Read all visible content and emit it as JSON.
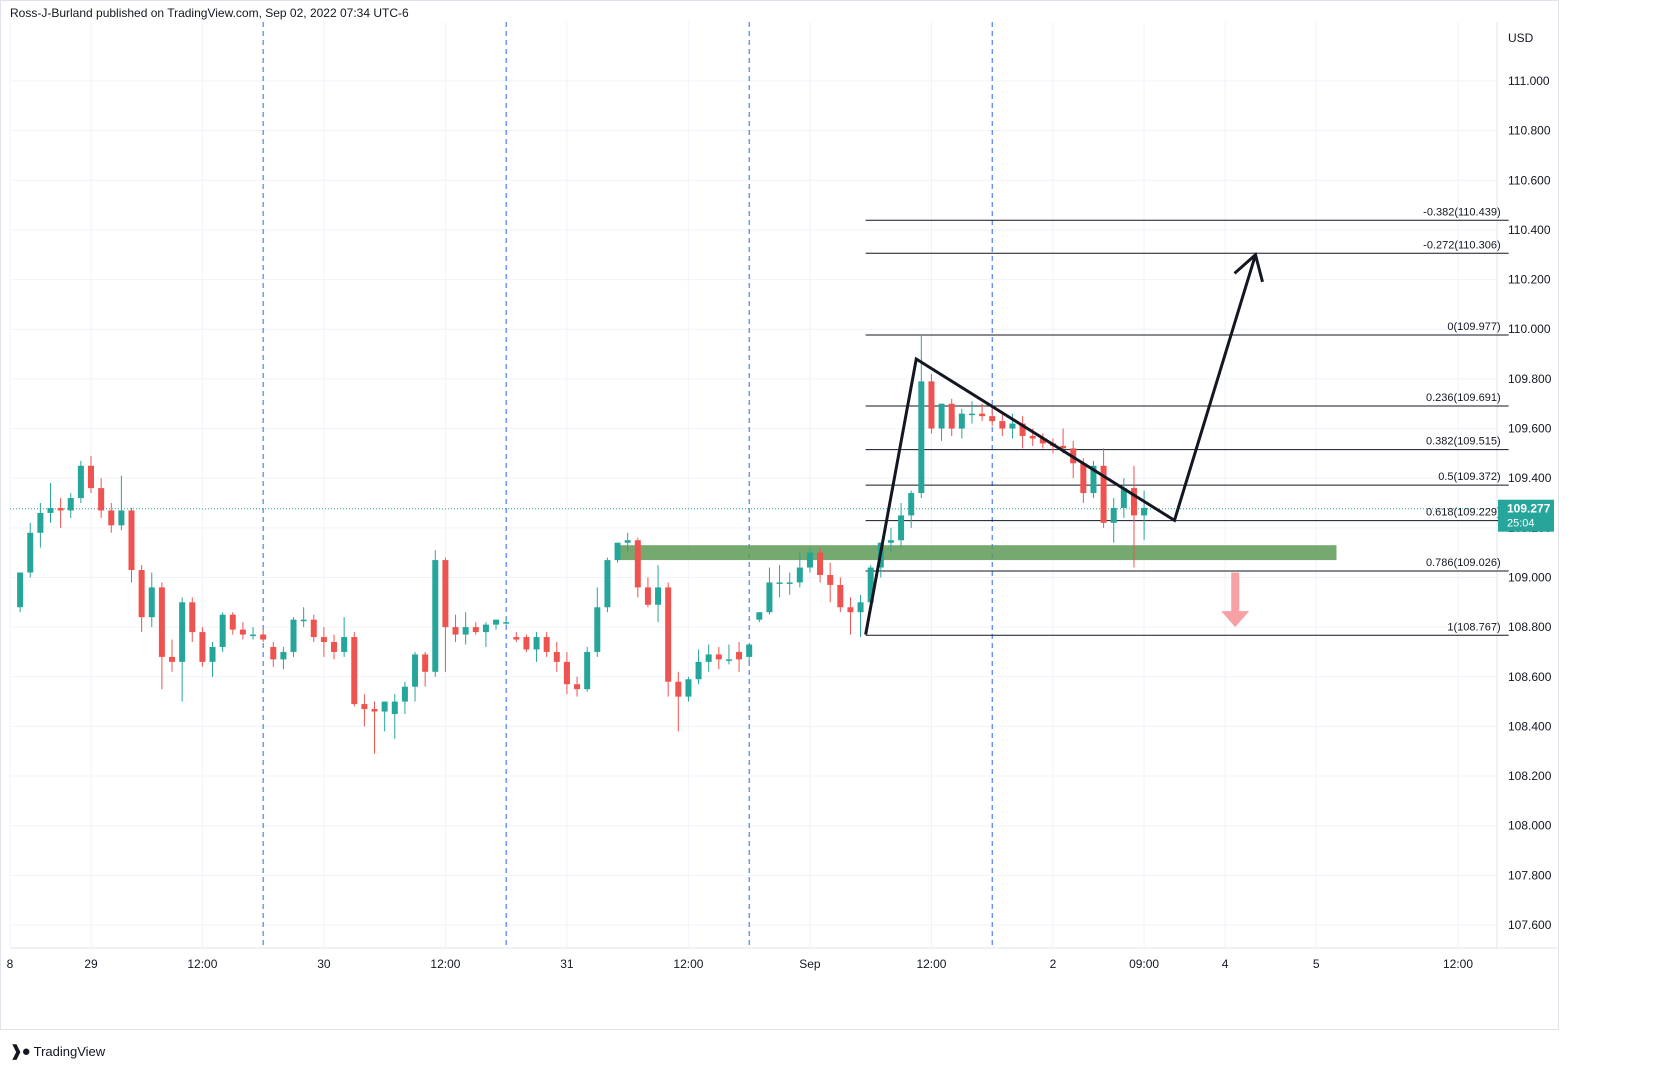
{
  "header": {
    "published_line": "Ross-J-Burland published on TradingView.com, Sep 02, 2022 07:34 UTC-6"
  },
  "footer": {
    "brand_label": "TradingView",
    "logo_icon": "tradingview-logo-icon"
  },
  "colors": {
    "up_candle": "#26a69a",
    "down_candle": "#ef5350",
    "session_line": "#2962ff",
    "zone_fill": "#5e9a56",
    "arrow_down": "#f7a1a5",
    "price_tag": "#26a69a",
    "fib_line": "#131722"
  },
  "chart_data": {
    "type": "candlestick",
    "title": "",
    "currency": "USD",
    "ylim": [
      107.5,
      111.2
    ],
    "y_ticks": [
      107.6,
      107.8,
      108.0,
      108.2,
      108.4,
      108.6,
      108.8,
      109.0,
      109.2,
      109.4,
      109.6,
      109.8,
      110.0,
      110.2,
      110.4,
      110.6,
      110.8,
      111.0
    ],
    "y_tick_labels": [
      "107.600",
      "107.800",
      "108.000",
      "108.200",
      "108.400",
      "108.600",
      "108.800",
      "109.000",
      "109.200",
      "109.400",
      "109.600",
      "109.800",
      "110.000",
      "110.200",
      "110.400",
      "110.600",
      "110.800",
      "111.000"
    ],
    "x_labels": [
      {
        "label": "8",
        "t": 0
      },
      {
        "label": "29",
        "t": 8
      },
      {
        "label": "12:00",
        "t": 19
      },
      {
        "label": "30",
        "t": 31
      },
      {
        "label": "12:00",
        "t": 43
      },
      {
        "label": "31",
        "t": 55
      },
      {
        "label": "12:00",
        "t": 67
      },
      {
        "label": "Sep",
        "t": 79
      },
      {
        "label": "12:00",
        "t": 91
      },
      {
        "label": "2",
        "t": 103
      },
      {
        "label": "09:00",
        "t": 112
      },
      {
        "label": "4",
        "t": 120
      },
      {
        "label": "5",
        "t": 129
      },
      {
        "label": "12:00",
        "t": 143
      }
    ],
    "t_range": [
      0,
      149
    ],
    "session_lines_t": [
      25,
      49,
      73,
      97
    ],
    "candles": [
      {
        "t": 1,
        "o": 108.88,
        "h": 109.02,
        "l": 108.86,
        "c": 109.02
      },
      {
        "t": 2,
        "o": 109.02,
        "h": 109.22,
        "l": 109.0,
        "c": 109.18
      },
      {
        "t": 3,
        "o": 109.18,
        "h": 109.3,
        "l": 109.12,
        "c": 109.26
      },
      {
        "t": 4,
        "o": 109.26,
        "h": 109.38,
        "l": 109.22,
        "c": 109.28
      },
      {
        "t": 5,
        "o": 109.28,
        "h": 109.32,
        "l": 109.2,
        "c": 109.27
      },
      {
        "t": 6,
        "o": 109.27,
        "h": 109.34,
        "l": 109.24,
        "c": 109.32
      },
      {
        "t": 7,
        "o": 109.32,
        "h": 109.47,
        "l": 109.3,
        "c": 109.45
      },
      {
        "t": 8,
        "o": 109.45,
        "h": 109.49,
        "l": 109.34,
        "c": 109.36
      },
      {
        "t": 9,
        "o": 109.36,
        "h": 109.4,
        "l": 109.24,
        "c": 109.27
      },
      {
        "t": 10,
        "o": 109.27,
        "h": 109.3,
        "l": 109.18,
        "c": 109.21
      },
      {
        "t": 11,
        "o": 109.21,
        "h": 109.41,
        "l": 109.19,
        "c": 109.27
      },
      {
        "t": 12,
        "o": 109.27,
        "h": 109.28,
        "l": 108.98,
        "c": 109.03
      },
      {
        "t": 13,
        "o": 109.03,
        "h": 109.05,
        "l": 108.78,
        "c": 108.84
      },
      {
        "t": 14,
        "o": 108.84,
        "h": 109.02,
        "l": 108.8,
        "c": 108.96
      },
      {
        "t": 15,
        "o": 108.96,
        "h": 108.98,
        "l": 108.55,
        "c": 108.68
      },
      {
        "t": 16,
        "o": 108.68,
        "h": 108.75,
        "l": 108.62,
        "c": 108.66
      },
      {
        "t": 17,
        "o": 108.66,
        "h": 108.92,
        "l": 108.5,
        "c": 108.9
      },
      {
        "t": 18,
        "o": 108.9,
        "h": 108.92,
        "l": 108.74,
        "c": 108.78
      },
      {
        "t": 19,
        "o": 108.78,
        "h": 108.8,
        "l": 108.64,
        "c": 108.66
      },
      {
        "t": 20,
        "o": 108.66,
        "h": 108.74,
        "l": 108.6,
        "c": 108.72
      },
      {
        "t": 21,
        "o": 108.72,
        "h": 108.86,
        "l": 108.7,
        "c": 108.85
      },
      {
        "t": 22,
        "o": 108.85,
        "h": 108.86,
        "l": 108.77,
        "c": 108.79
      },
      {
        "t": 23,
        "o": 108.79,
        "h": 108.82,
        "l": 108.75,
        "c": 108.77
      },
      {
        "t": 24,
        "o": 108.77,
        "h": 108.8,
        "l": 108.75,
        "c": 108.77
      },
      {
        "t": 25,
        "o": 108.77,
        "h": 108.79,
        "l": 108.74,
        "c": 108.75
      },
      {
        "t": 26,
        "o": 108.72,
        "h": 108.74,
        "l": 108.64,
        "c": 108.67
      },
      {
        "t": 27,
        "o": 108.67,
        "h": 108.72,
        "l": 108.63,
        "c": 108.7
      },
      {
        "t": 28,
        "o": 108.7,
        "h": 108.84,
        "l": 108.68,
        "c": 108.83
      },
      {
        "t": 29,
        "o": 108.83,
        "h": 108.88,
        "l": 108.8,
        "c": 108.83
      },
      {
        "t": 30,
        "o": 108.83,
        "h": 108.85,
        "l": 108.74,
        "c": 108.76
      },
      {
        "t": 31,
        "o": 108.76,
        "h": 108.8,
        "l": 108.68,
        "c": 108.74
      },
      {
        "t": 32,
        "o": 108.74,
        "h": 108.77,
        "l": 108.67,
        "c": 108.7
      },
      {
        "t": 33,
        "o": 108.7,
        "h": 108.84,
        "l": 108.68,
        "c": 108.76
      },
      {
        "t": 34,
        "o": 108.76,
        "h": 108.78,
        "l": 108.48,
        "c": 108.49
      },
      {
        "t": 35,
        "o": 108.49,
        "h": 108.53,
        "l": 108.4,
        "c": 108.47
      },
      {
        "t": 36,
        "o": 108.47,
        "h": 108.5,
        "l": 108.29,
        "c": 108.46
      },
      {
        "t": 37,
        "o": 108.46,
        "h": 108.5,
        "l": 108.38,
        "c": 108.5
      },
      {
        "t": 38,
        "o": 108.45,
        "h": 108.53,
        "l": 108.35,
        "c": 108.5
      },
      {
        "t": 39,
        "o": 108.5,
        "h": 108.58,
        "l": 108.45,
        "c": 108.56
      },
      {
        "t": 40,
        "o": 108.56,
        "h": 108.7,
        "l": 108.5,
        "c": 108.69
      },
      {
        "t": 41,
        "o": 108.69,
        "h": 108.7,
        "l": 108.56,
        "c": 108.62
      },
      {
        "t": 42,
        "o": 108.62,
        "h": 109.11,
        "l": 108.6,
        "c": 109.07
      },
      {
        "t": 43,
        "o": 109.07,
        "h": 109.08,
        "l": 108.62,
        "c": 108.8
      },
      {
        "t": 44,
        "o": 108.8,
        "h": 108.85,
        "l": 108.74,
        "c": 108.77
      },
      {
        "t": 45,
        "o": 108.77,
        "h": 108.86,
        "l": 108.73,
        "c": 108.8
      },
      {
        "t": 46,
        "o": 108.8,
        "h": 108.82,
        "l": 108.77,
        "c": 108.78
      },
      {
        "t": 47,
        "o": 108.78,
        "h": 108.82,
        "l": 108.72,
        "c": 108.81
      },
      {
        "t": 48,
        "o": 108.81,
        "h": 108.83,
        "l": 108.79,
        "c": 108.83
      },
      {
        "t": 49,
        "o": 108.82,
        "h": 108.83,
        "l": 108.81,
        "c": 108.82
      },
      {
        "t": 50,
        "o": 108.76,
        "h": 108.78,
        "l": 108.74,
        "c": 108.75
      },
      {
        "t": 51,
        "o": 108.76,
        "h": 108.77,
        "l": 108.7,
        "c": 108.71
      },
      {
        "t": 52,
        "o": 108.71,
        "h": 108.78,
        "l": 108.66,
        "c": 108.76
      },
      {
        "t": 53,
        "o": 108.76,
        "h": 108.78,
        "l": 108.68,
        "c": 108.7
      },
      {
        "t": 54,
        "o": 108.7,
        "h": 108.74,
        "l": 108.62,
        "c": 108.66
      },
      {
        "t": 55,
        "o": 108.66,
        "h": 108.7,
        "l": 108.53,
        "c": 108.57
      },
      {
        "t": 56,
        "o": 108.57,
        "h": 108.6,
        "l": 108.52,
        "c": 108.55
      },
      {
        "t": 57,
        "o": 108.55,
        "h": 108.72,
        "l": 108.54,
        "c": 108.7
      },
      {
        "t": 58,
        "o": 108.7,
        "h": 108.96,
        "l": 108.68,
        "c": 108.88
      },
      {
        "t": 59,
        "o": 108.88,
        "h": 109.08,
        "l": 108.86,
        "c": 109.07
      },
      {
        "t": 60,
        "o": 109.07,
        "h": 109.14,
        "l": 109.06,
        "c": 109.14
      },
      {
        "t": 61,
        "o": 109.14,
        "h": 109.18,
        "l": 109.1,
        "c": 109.15
      },
      {
        "t": 62,
        "o": 109.15,
        "h": 109.16,
        "l": 108.92,
        "c": 108.96
      },
      {
        "t": 63,
        "o": 108.96,
        "h": 109.0,
        "l": 108.88,
        "c": 108.89
      },
      {
        "t": 64,
        "o": 108.89,
        "h": 109.05,
        "l": 108.82,
        "c": 108.96
      },
      {
        "t": 65,
        "o": 108.96,
        "h": 108.98,
        "l": 108.52,
        "c": 108.58
      },
      {
        "t": 66,
        "o": 108.58,
        "h": 108.62,
        "l": 108.38,
        "c": 108.52
      },
      {
        "t": 67,
        "o": 108.52,
        "h": 108.6,
        "l": 108.5,
        "c": 108.59
      },
      {
        "t": 68,
        "o": 108.59,
        "h": 108.71,
        "l": 108.57,
        "c": 108.66
      },
      {
        "t": 69,
        "o": 108.66,
        "h": 108.73,
        "l": 108.62,
        "c": 108.69
      },
      {
        "t": 70,
        "o": 108.69,
        "h": 108.72,
        "l": 108.63,
        "c": 108.67
      },
      {
        "t": 71,
        "o": 108.67,
        "h": 108.73,
        "l": 108.65,
        "c": 108.67
      },
      {
        "t": 72,
        "o": 108.7,
        "h": 108.74,
        "l": 108.62,
        "c": 108.67
      },
      {
        "t": 73,
        "o": 108.68,
        "h": 108.73,
        "l": 108.66,
        "c": 108.73
      },
      {
        "t": 74,
        "o": 108.83,
        "h": 108.86,
        "l": 108.82,
        "c": 108.86
      },
      {
        "t": 75,
        "o": 108.86,
        "h": 109.04,
        "l": 108.85,
        "c": 108.98
      },
      {
        "t": 76,
        "o": 108.98,
        "h": 109.05,
        "l": 108.92,
        "c": 108.98
      },
      {
        "t": 77,
        "o": 108.98,
        "h": 109.02,
        "l": 108.93,
        "c": 108.98
      },
      {
        "t": 78,
        "o": 108.98,
        "h": 109.1,
        "l": 108.96,
        "c": 109.04
      },
      {
        "t": 79,
        "o": 109.04,
        "h": 109.12,
        "l": 109.02,
        "c": 109.1
      },
      {
        "t": 80,
        "o": 109.1,
        "h": 109.12,
        "l": 108.98,
        "c": 109.01
      },
      {
        "t": 81,
        "o": 109.01,
        "h": 109.06,
        "l": 108.9,
        "c": 108.97
      },
      {
        "t": 82,
        "o": 108.97,
        "h": 109.0,
        "l": 108.86,
        "c": 108.88
      },
      {
        "t": 83,
        "o": 108.88,
        "h": 108.92,
        "l": 108.77,
        "c": 108.86
      },
      {
        "t": 84,
        "o": 108.86,
        "h": 108.93,
        "l": 108.76,
        "c": 108.9
      },
      {
        "t": 85,
        "o": 108.9,
        "h": 109.05,
        "l": 108.88,
        "c": 109.04
      },
      {
        "t": 86,
        "o": 109.04,
        "h": 109.14,
        "l": 109.0,
        "c": 109.14
      },
      {
        "t": 87,
        "o": 109.14,
        "h": 109.2,
        "l": 109.1,
        "c": 109.15
      },
      {
        "t": 88,
        "o": 109.15,
        "h": 109.3,
        "l": 109.12,
        "c": 109.25
      },
      {
        "t": 89,
        "o": 109.25,
        "h": 109.35,
        "l": 109.2,
        "c": 109.34
      },
      {
        "t": 90,
        "o": 109.34,
        "h": 109.98,
        "l": 109.32,
        "c": 109.79
      },
      {
        "t": 91,
        "o": 109.79,
        "h": 109.82,
        "l": 109.58,
        "c": 109.6
      },
      {
        "t": 92,
        "o": 109.6,
        "h": 109.7,
        "l": 109.55,
        "c": 109.7
      },
      {
        "t": 93,
        "o": 109.7,
        "h": 109.72,
        "l": 109.57,
        "c": 109.6
      },
      {
        "t": 94,
        "o": 109.6,
        "h": 109.68,
        "l": 109.56,
        "c": 109.66
      },
      {
        "t": 95,
        "o": 109.66,
        "h": 109.71,
        "l": 109.62,
        "c": 109.66
      },
      {
        "t": 96,
        "o": 109.66,
        "h": 109.7,
        "l": 109.63,
        "c": 109.65
      },
      {
        "t": 97,
        "o": 109.65,
        "h": 109.69,
        "l": 109.61,
        "c": 109.63
      },
      {
        "t": 98,
        "o": 109.63,
        "h": 109.67,
        "l": 109.57,
        "c": 109.6
      },
      {
        "t": 99,
        "o": 109.6,
        "h": 109.66,
        "l": 109.56,
        "c": 109.62
      },
      {
        "t": 100,
        "o": 109.62,
        "h": 109.65,
        "l": 109.52,
        "c": 109.57
      },
      {
        "t": 101,
        "o": 109.57,
        "h": 109.6,
        "l": 109.53,
        "c": 109.56
      },
      {
        "t": 102,
        "o": 109.56,
        "h": 109.58,
        "l": 109.52,
        "c": 109.54
      },
      {
        "t": 103,
        "o": 109.54,
        "h": 109.56,
        "l": 109.5,
        "c": 109.53
      },
      {
        "t": 104,
        "o": 109.53,
        "h": 109.6,
        "l": 109.5,
        "c": 109.52
      },
      {
        "t": 105,
        "o": 109.52,
        "h": 109.55,
        "l": 109.4,
        "c": 109.46
      },
      {
        "t": 106,
        "o": 109.46,
        "h": 109.48,
        "l": 109.3,
        "c": 109.34
      },
      {
        "t": 107,
        "o": 109.34,
        "h": 109.47,
        "l": 109.32,
        "c": 109.45
      },
      {
        "t": 108,
        "o": 109.45,
        "h": 109.52,
        "l": 109.2,
        "c": 109.22
      },
      {
        "t": 109,
        "o": 109.22,
        "h": 109.32,
        "l": 109.14,
        "c": 109.28
      },
      {
        "t": 110,
        "o": 109.28,
        "h": 109.4,
        "l": 109.24,
        "c": 109.36
      },
      {
        "t": 111,
        "o": 109.36,
        "h": 109.45,
        "l": 109.04,
        "c": 109.25
      },
      {
        "t": 112,
        "o": 109.25,
        "h": 109.35,
        "l": 109.15,
        "c": 109.28
      }
    ],
    "fib_levels": [
      {
        "label": "-0.382(110.439)",
        "value": 110.439
      },
      {
        "label": "-0.272(110.306)",
        "value": 110.306
      },
      {
        "label": "0(109.977)",
        "value": 109.977
      },
      {
        "label": "0.236(109.691)",
        "value": 109.691
      },
      {
        "label": "0.382(109.515)",
        "value": 109.515
      },
      {
        "label": "0.5(109.372)",
        "value": 109.372
      },
      {
        "label": "0.618(109.229)",
        "value": 109.229
      },
      {
        "label": "0.786(109.026)",
        "value": 109.026
      },
      {
        "label": "1(108.767)",
        "value": 108.767
      }
    ],
    "fib_t_range": [
      84.5,
      148
    ],
    "support_zone": {
      "t_start": 60,
      "t_end": 131,
      "low": 109.07,
      "high": 109.13
    },
    "pattern_path": [
      {
        "t": 84.5,
        "v": 108.77
      },
      {
        "t": 89.5,
        "v": 109.88
      },
      {
        "t": 115,
        "v": 109.23
      },
      {
        "t": 123,
        "v": 110.3
      }
    ],
    "arrow_head_t": 123,
    "down_arrow": {
      "t": 121,
      "from": 109.02,
      "to": 108.8
    },
    "last_price": {
      "value": 109.277,
      "label": "109.277",
      "countdown": "25:04"
    }
  }
}
